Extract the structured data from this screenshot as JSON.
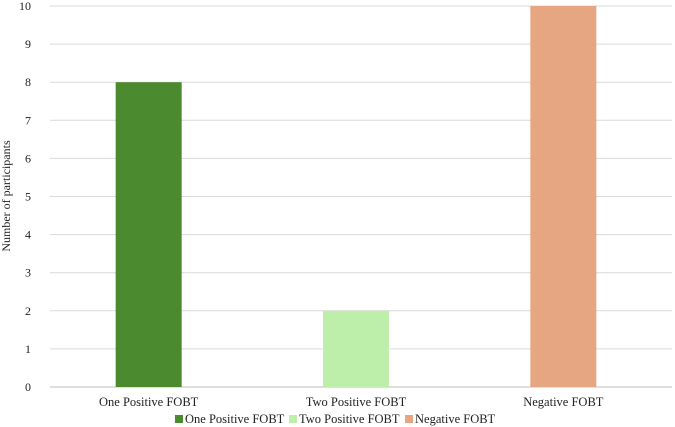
{
  "chart_data": {
    "type": "bar",
    "categories": [
      "One Positive FOBT",
      "Two Positive FOBT",
      "Negative FOBT"
    ],
    "values": [
      8,
      2,
      10
    ],
    "colors": [
      "#4b8a2e",
      "#bdeeaa",
      "#e6a681"
    ],
    "ylabel": "Number of participants",
    "xlabel": "",
    "ylim": [
      0,
      10
    ],
    "yticks": [
      "0",
      "1",
      "2",
      "3",
      "4",
      "5",
      "6",
      "7",
      "8",
      "9",
      "10"
    ],
    "grid": true,
    "legend": {
      "position": "bottom",
      "entries": [
        "One Positive FOBT",
        "Two Positive FOBT",
        "Negative FOBT"
      ]
    }
  }
}
